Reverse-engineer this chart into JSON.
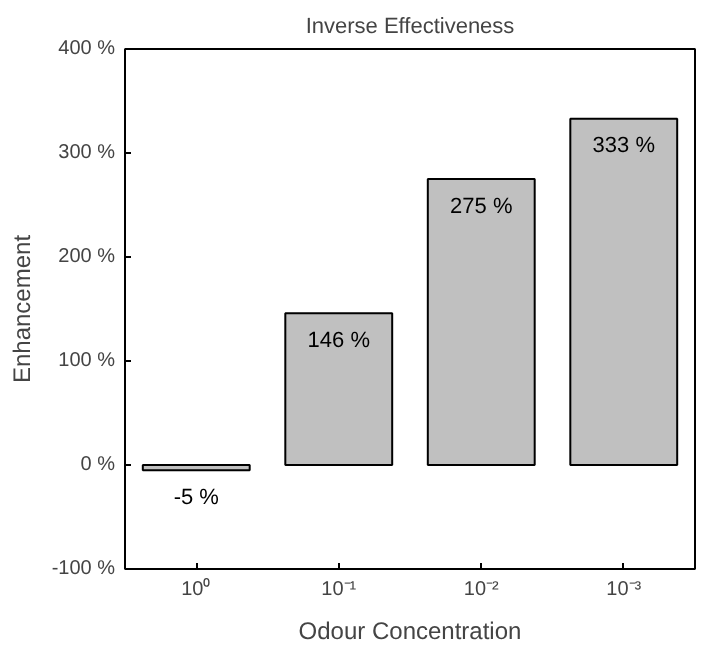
{
  "chart_data": {
    "type": "bar",
    "title": "Inverse Effectiveness",
    "xlabel": "Odour Concentration",
    "ylabel": "Enhancement",
    "categories": [
      "10⁰",
      "10⁻¹",
      "10⁻²",
      "10⁻³"
    ],
    "values": [
      -5,
      146,
      275,
      333
    ],
    "value_labels": [
      "-5 %",
      "146 %",
      "275 %",
      "333 %"
    ],
    "color": "#c0c0c0",
    "ylim": [
      -100,
      400
    ],
    "yticks": [
      {
        "value": -100,
        "label": "-100 %"
      },
      {
        "value": 0,
        "label": "0 %"
      },
      {
        "value": 100,
        "label": "100 %"
      },
      {
        "value": 200,
        "label": "200 %"
      },
      {
        "value": 300,
        "label": "300 %"
      },
      {
        "value": 400,
        "label": "400 %"
      }
    ],
    "grid": false
  }
}
